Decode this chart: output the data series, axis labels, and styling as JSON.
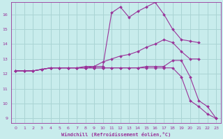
{
  "xlabel": "Windchill (Refroidissement éolien,°C)",
  "bg_color": "#c8ecec",
  "grid_color": "#aad4d4",
  "line_color": "#993399",
  "marker_color": "#993399",
  "xlim": [
    -0.5,
    23.5
  ],
  "ylim": [
    8.7,
    16.8
  ],
  "xticks": [
    0,
    1,
    2,
    3,
    4,
    5,
    6,
    7,
    8,
    9,
    10,
    11,
    12,
    13,
    14,
    15,
    16,
    17,
    18,
    19,
    20,
    21,
    22,
    23
  ],
  "yticks": [
    9,
    10,
    11,
    12,
    13,
    14,
    15,
    16
  ],
  "series": [
    {
      "x": [
        0,
        1,
        2,
        3,
        4,
        5,
        6,
        7,
        8,
        9,
        10,
        11,
        12,
        13,
        14,
        15,
        16,
        17,
        18,
        19,
        20,
        21
      ],
      "y": [
        12.2,
        12.2,
        12.2,
        12.3,
        12.4,
        12.4,
        12.4,
        12.4,
        12.5,
        12.5,
        12.5,
        16.1,
        16.5,
        15.8,
        16.2,
        16.5,
        16.8,
        16.0,
        15.0,
        14.3,
        14.2,
        14.1
      ]
    },
    {
      "x": [
        0,
        1,
        2,
        3,
        4,
        5,
        6,
        7,
        8,
        9,
        10,
        11,
        12,
        13,
        14,
        15,
        16,
        17,
        18,
        19,
        20,
        21
      ],
      "y": [
        12.2,
        12.2,
        12.2,
        12.3,
        12.4,
        12.4,
        12.4,
        12.4,
        12.4,
        12.5,
        12.8,
        13.0,
        13.2,
        13.3,
        13.5,
        13.8,
        14.0,
        14.3,
        14.1,
        13.5,
        13.0,
        13.0
      ]
    },
    {
      "x": [
        0,
        1,
        2,
        3,
        4,
        5,
        6,
        7,
        8,
        9,
        10,
        11,
        12,
        13,
        14,
        15,
        16,
        17,
        18,
        19,
        20,
        21,
        22,
        23
      ],
      "y": [
        12.2,
        12.2,
        12.2,
        12.3,
        12.4,
        12.4,
        12.4,
        12.4,
        12.4,
        12.4,
        12.4,
        12.4,
        12.4,
        12.4,
        12.4,
        12.5,
        12.5,
        12.5,
        12.9,
        12.9,
        11.8,
        10.2,
        9.8,
        9.0
      ]
    },
    {
      "x": [
        0,
        1,
        2,
        3,
        4,
        5,
        6,
        7,
        8,
        9,
        10,
        11,
        12,
        13,
        14,
        15,
        16,
        17,
        18,
        19,
        20,
        21,
        22,
        23
      ],
      "y": [
        12.2,
        12.2,
        12.2,
        12.3,
        12.4,
        12.4,
        12.4,
        12.4,
        12.4,
        12.4,
        12.4,
        12.4,
        12.4,
        12.4,
        12.4,
        12.4,
        12.4,
        12.4,
        12.4,
        11.8,
        10.2,
        9.8,
        9.3,
        9.0
      ]
    }
  ]
}
